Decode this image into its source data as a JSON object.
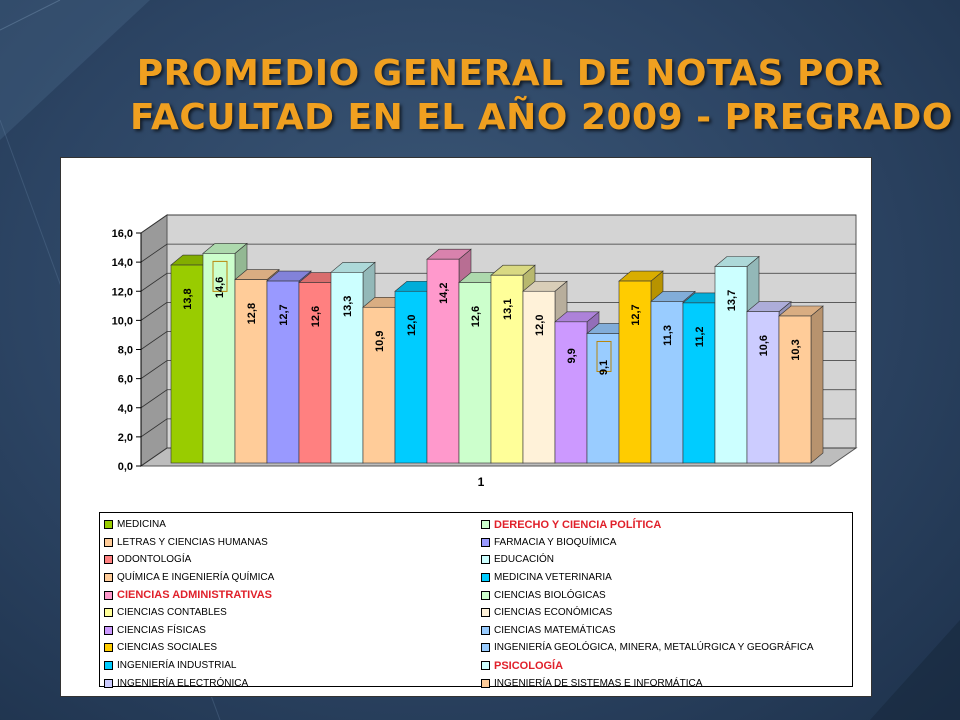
{
  "slide": {
    "title_line1": "PROMEDIO GENERAL DE NOTAS POR",
    "title_line2": "FACULTAD EN EL AÑO 2009  - PREGRADO"
  },
  "chart_data": {
    "type": "bar",
    "title": "PROMEDIO GENERAL DE NOTAS POR FACULTAD EN EL AÑO 2009 - PREGRADO",
    "categories": [
      "1"
    ],
    "xlabel": "",
    "ylabel": "",
    "ylim": [
      0,
      16
    ],
    "y_ticks": [
      "0,0",
      "2,0",
      "4,0",
      "6,0",
      "8,0",
      "10,0",
      "12,0",
      "14,0",
      "16,0"
    ],
    "grid": true,
    "legend_position": "bottom",
    "series": [
      {
        "name": "MEDICINA",
        "value": 13.8,
        "label": "13,8",
        "color": "#99cc00",
        "highlight": false
      },
      {
        "name": "DERECHO Y CIENCIA POLÍTICA",
        "value": 14.6,
        "label": "14,6",
        "color": "#ccffcc",
        "highlight": true,
        "boxed_label": true
      },
      {
        "name": "LETRAS Y CIENCIAS HUMANAS",
        "value": 12.8,
        "label": "12,8",
        "color": "#ffcc99",
        "highlight": false
      },
      {
        "name": "FARMACIA Y BIOQUÍMICA",
        "value": 12.7,
        "label": "12,7",
        "color": "#9999ff",
        "highlight": false
      },
      {
        "name": "ODONTOLOGÍA",
        "value": 12.6,
        "label": "12,6",
        "color": "#ff8080",
        "highlight": false
      },
      {
        "name": "EDUCACIÓN",
        "value": 13.3,
        "label": "13,3",
        "color": "#ccffff",
        "highlight": false
      },
      {
        "name": "QUÍMICA E INGENIERÍA QUÍMICA",
        "value": 10.9,
        "label": "10,9",
        "color": "#ffcc99",
        "highlight": false
      },
      {
        "name": "MEDICINA VETERINARIA",
        "value": 12.0,
        "label": "12,0",
        "color": "#00ccff",
        "highlight": false
      },
      {
        "name": "CIENCIAS ADMINISTRATIVAS",
        "value": 14.2,
        "label": "14,2",
        "color": "#ff99cc",
        "highlight": true
      },
      {
        "name": "CIENCIAS BIOLÓGICAS",
        "value": 12.6,
        "label": "12,6",
        "color": "#ccffcc",
        "highlight": false
      },
      {
        "name": "CIENCIAS CONTABLES",
        "value": 13.1,
        "label": "13,1",
        "color": "#ffff99",
        "highlight": false
      },
      {
        "name": "CIENCIAS ECONÓMICAS",
        "value": 12.0,
        "label": "12,0",
        "color": "#fff2d9",
        "highlight": false
      },
      {
        "name": "CIENCIAS FÍSICAS",
        "value": 9.9,
        "label": "9,9",
        "color": "#cc99ff",
        "highlight": false
      },
      {
        "name": "CIENCIAS MATEMÁTICAS",
        "value": 9.1,
        "label": "9,1",
        "color": "#99ccff",
        "highlight": false,
        "boxed_label": true
      },
      {
        "name": "CIENCIAS SOCIALES",
        "value": 12.7,
        "label": "12,7",
        "color": "#ffcc00",
        "highlight": false
      },
      {
        "name": "INGENIERÍA GEOLÓGICA, MINERA, METALÚRGICA Y GEOGRÁFICA",
        "value": 11.3,
        "label": "11,3",
        "color": "#99ccff",
        "highlight": false
      },
      {
        "name": "INGENIERÍA INDUSTRIAL",
        "value": 11.2,
        "label": "11,2",
        "color": "#00ccff",
        "highlight": false
      },
      {
        "name": "PSICOLOGÍA",
        "value": 13.7,
        "label": "13,7",
        "color": "#ccffff",
        "highlight": true
      },
      {
        "name": "INGENIERÍA ELECTRÓNICA",
        "value": 10.6,
        "label": "10,6",
        "color": "#ccccff",
        "highlight": false
      },
      {
        "name": "INGENIERÍA DE SISTEMAS E INFORMÁTICA",
        "value": 10.3,
        "label": "10,3",
        "color": "#ffcc99",
        "highlight": false
      }
    ]
  }
}
